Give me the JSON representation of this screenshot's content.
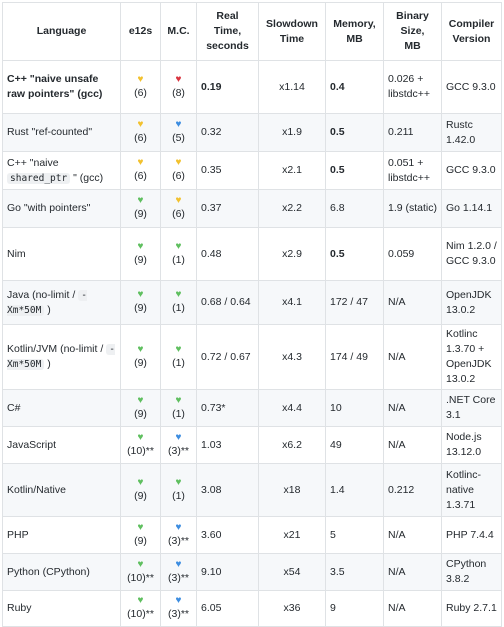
{
  "headers": [
    "Language",
    "e12s",
    "M.C.",
    "Real Time, seconds",
    "Slowdown Time",
    "Memory, MB",
    "Binary Size, MB",
    "Compiler Version"
  ],
  "header_lines": [
    [
      "Language"
    ],
    [
      "e12s"
    ],
    [
      "M.C."
    ],
    [
      "Real",
      "Time,",
      "seconds"
    ],
    [
      "Slowdown",
      "Time"
    ],
    [
      "Memory,",
      "MB"
    ],
    [
      "Binary",
      "Size,",
      "MB"
    ],
    [
      "Compiler",
      "Version"
    ]
  ],
  "heart_colors": {
    "green": "#5fbf5f",
    "yellow": "#f2c12e",
    "blue": "#3d8de0",
    "broken": "#d9343f"
  },
  "rows": [
    {
      "lang_pre": "C++ \"naive unsafe raw pointers\" (gcc)",
      "lang_code": "",
      "lang_post": "",
      "lang_bold": true,
      "e12s_icon": "yellow-heart-icon",
      "e12s_glyph": "♥",
      "e12s_color": "yellow",
      "e12s": "(6)",
      "mc_icon": "broken-heart-icon",
      "mc_glyph": "♥",
      "mc_color": "broken",
      "mc": "(8)",
      "time": "0.19",
      "time_bold": true,
      "slowdown": "x1.14",
      "memory": "0.4",
      "memory_bold": true,
      "binary": "0.026 + libstdc++",
      "compiler": "GCC 9.3.0",
      "height": 53
    },
    {
      "lang_pre": "Rust \"ref-counted\"",
      "lang_code": "",
      "lang_post": "",
      "lang_bold": false,
      "e12s_icon": "yellow-heart-icon",
      "e12s_glyph": "♥",
      "e12s_color": "yellow",
      "e12s": "(6)",
      "mc_icon": "blue-heart-icon",
      "mc_glyph": "♥",
      "mc_color": "blue",
      "mc": "(5)",
      "time": "0.32",
      "time_bold": false,
      "slowdown": "x1.9",
      "memory": "0.5",
      "memory_bold": true,
      "binary": "0.211",
      "compiler": "Rustc 1.42.0",
      "height": 38
    },
    {
      "lang_pre": "C++ \"naive",
      "lang_code": "shared_ptr",
      "lang_post": "\" (gcc)",
      "lang_bold": false,
      "e12s_icon": "yellow-heart-icon",
      "e12s_glyph": "♥",
      "e12s_color": "yellow",
      "e12s": "(6)",
      "mc_icon": "yellow-heart-icon",
      "mc_glyph": "♥",
      "mc_color": "yellow",
      "mc": "(6)",
      "time": "0.35",
      "time_bold": false,
      "slowdown": "x2.1",
      "memory": "0.5",
      "memory_bold": true,
      "binary": "0.051 + libstdc++",
      "compiler": "GCC 9.3.0",
      "height": 38
    },
    {
      "lang_pre": "Go \"with pointers\"",
      "lang_code": "",
      "lang_post": "",
      "lang_bold": false,
      "e12s_icon": "green-heart-icon",
      "e12s_glyph": "♥",
      "e12s_color": "green",
      "e12s": "(9)",
      "mc_icon": "yellow-heart-icon",
      "mc_glyph": "♥",
      "mc_color": "yellow",
      "mc": "(6)",
      "time": "0.37",
      "time_bold": false,
      "slowdown": "x2.2",
      "memory": "6.8",
      "memory_bold": false,
      "binary": "1.9 (static)",
      "compiler": "Go 1.14.1",
      "height": 38
    },
    {
      "lang_pre": "Nim",
      "lang_code": "",
      "lang_post": "",
      "lang_bold": false,
      "e12s_icon": "green-heart-icon",
      "e12s_glyph": "♥",
      "e12s_color": "green",
      "e12s": "(9)",
      "mc_icon": "green-heart-icon",
      "mc_glyph": "♥",
      "mc_color": "green",
      "mc": "(1)",
      "time": "0.48",
      "time_bold": false,
      "slowdown": "x2.9",
      "memory": "0.5",
      "memory_bold": true,
      "binary": "0.059",
      "compiler": "Nim 1.2.0 / GCC 9.3.0",
      "height": 53
    },
    {
      "lang_pre": "Java (no-limit /",
      "lang_code": "-Xm*50M",
      "lang_post": ")",
      "lang_bold": false,
      "e12s_icon": "green-heart-icon",
      "e12s_glyph": "♥",
      "e12s_color": "green",
      "e12s": "(9)",
      "mc_icon": "green-heart-icon",
      "mc_glyph": "♥",
      "mc_color": "green",
      "mc": "(1)",
      "time": "0.68 / 0.64",
      "time_bold": false,
      "slowdown": "x4.1",
      "memory": "172 / 47",
      "memory_bold": false,
      "binary": "N/A",
      "compiler": "OpenJDK 13.0.2",
      "height": 44
    },
    {
      "lang_pre": "Kotlin/JVM (no-limit /",
      "lang_code": "-Xm*50M",
      "lang_post": ")",
      "lang_bold": false,
      "e12s_icon": "green-heart-icon",
      "e12s_glyph": "♥",
      "e12s_color": "green",
      "e12s": "(9)",
      "mc_icon": "green-heart-icon",
      "mc_glyph": "♥",
      "mc_color": "green",
      "mc": "(1)",
      "time": "0.72 / 0.67",
      "time_bold": false,
      "slowdown": "x4.3",
      "memory": "174 / 49",
      "memory_bold": false,
      "binary": "N/A",
      "compiler": "Kotlinc 1.3.70 + OpenJDK 13.0.2",
      "height": 60
    },
    {
      "lang_pre": "C#",
      "lang_code": "",
      "lang_post": "",
      "lang_bold": false,
      "e12s_icon": "green-heart-icon",
      "e12s_glyph": "♥",
      "e12s_color": "green",
      "e12s": "(9)",
      "mc_icon": "green-heart-icon",
      "mc_glyph": "♥",
      "mc_color": "green",
      "mc": "(1)",
      "time": "0.73*",
      "time_bold": false,
      "slowdown": "x4.4",
      "memory": "10",
      "memory_bold": false,
      "binary": "N/A",
      "compiler": ".NET Core 3.1",
      "height": 37
    },
    {
      "lang_pre": "JavaScript",
      "lang_code": "",
      "lang_post": "",
      "lang_bold": false,
      "e12s_icon": "green-heart-icon",
      "e12s_glyph": "♥",
      "e12s_color": "green",
      "e12s": "(10)**",
      "mc_icon": "blue-heart-icon",
      "mc_glyph": "♥",
      "mc_color": "blue",
      "mc": "(3)**",
      "time": "1.03",
      "time_bold": false,
      "slowdown": "x6.2",
      "memory": "49",
      "memory_bold": false,
      "binary": "N/A",
      "compiler": "Node.js 13.12.0",
      "height": 37
    },
    {
      "lang_pre": "Kotlin/Native",
      "lang_code": "",
      "lang_post": "",
      "lang_bold": false,
      "e12s_icon": "green-heart-icon",
      "e12s_glyph": "♥",
      "e12s_color": "green",
      "e12s": "(9)",
      "mc_icon": "green-heart-icon",
      "mc_glyph": "♥",
      "mc_color": "green",
      "mc": "(1)",
      "time": "3.08",
      "time_bold": false,
      "slowdown": "x18",
      "memory": "1.4",
      "memory_bold": false,
      "binary": "0.212",
      "compiler": "Kotlinc-native 1.3.71",
      "height": 53
    },
    {
      "lang_pre": "PHP",
      "lang_code": "",
      "lang_post": "",
      "lang_bold": false,
      "e12s_icon": "green-heart-icon",
      "e12s_glyph": "♥",
      "e12s_color": "green",
      "e12s": "(9)",
      "mc_icon": "blue-heart-icon",
      "mc_glyph": "♥",
      "mc_color": "blue",
      "mc": "(3)**",
      "time": "3.60",
      "time_bold": false,
      "slowdown": "x21",
      "memory": "5",
      "memory_bold": false,
      "binary": "N/A",
      "compiler": "PHP 7.4.4",
      "height": 37
    },
    {
      "lang_pre": "Python (CPython)",
      "lang_code": "",
      "lang_post": "",
      "lang_bold": false,
      "e12s_icon": "green-heart-icon",
      "e12s_glyph": "♥",
      "e12s_color": "green",
      "e12s": "(10)**",
      "mc_icon": "blue-heart-icon",
      "mc_glyph": "♥",
      "mc_color": "blue",
      "mc": "(3)**",
      "time": "9.10",
      "time_bold": false,
      "slowdown": "x54",
      "memory": "3.5",
      "memory_bold": false,
      "binary": "N/A",
      "compiler": "CPython 3.8.2",
      "height": 37
    },
    {
      "lang_pre": "Ruby",
      "lang_code": "",
      "lang_post": "",
      "lang_bold": false,
      "e12s_icon": "green-heart-icon",
      "e12s_glyph": "♥",
      "e12s_color": "green",
      "e12s": "(10)**",
      "mc_icon": "blue-heart-icon",
      "mc_glyph": "♥",
      "mc_color": "blue",
      "mc": "(3)**",
      "time": "6.05",
      "time_bold": false,
      "slowdown": "x36",
      "memory": "9",
      "memory_bold": false,
      "binary": "N/A",
      "compiler": "Ruby 2.7.1",
      "height": 36
    }
  ]
}
